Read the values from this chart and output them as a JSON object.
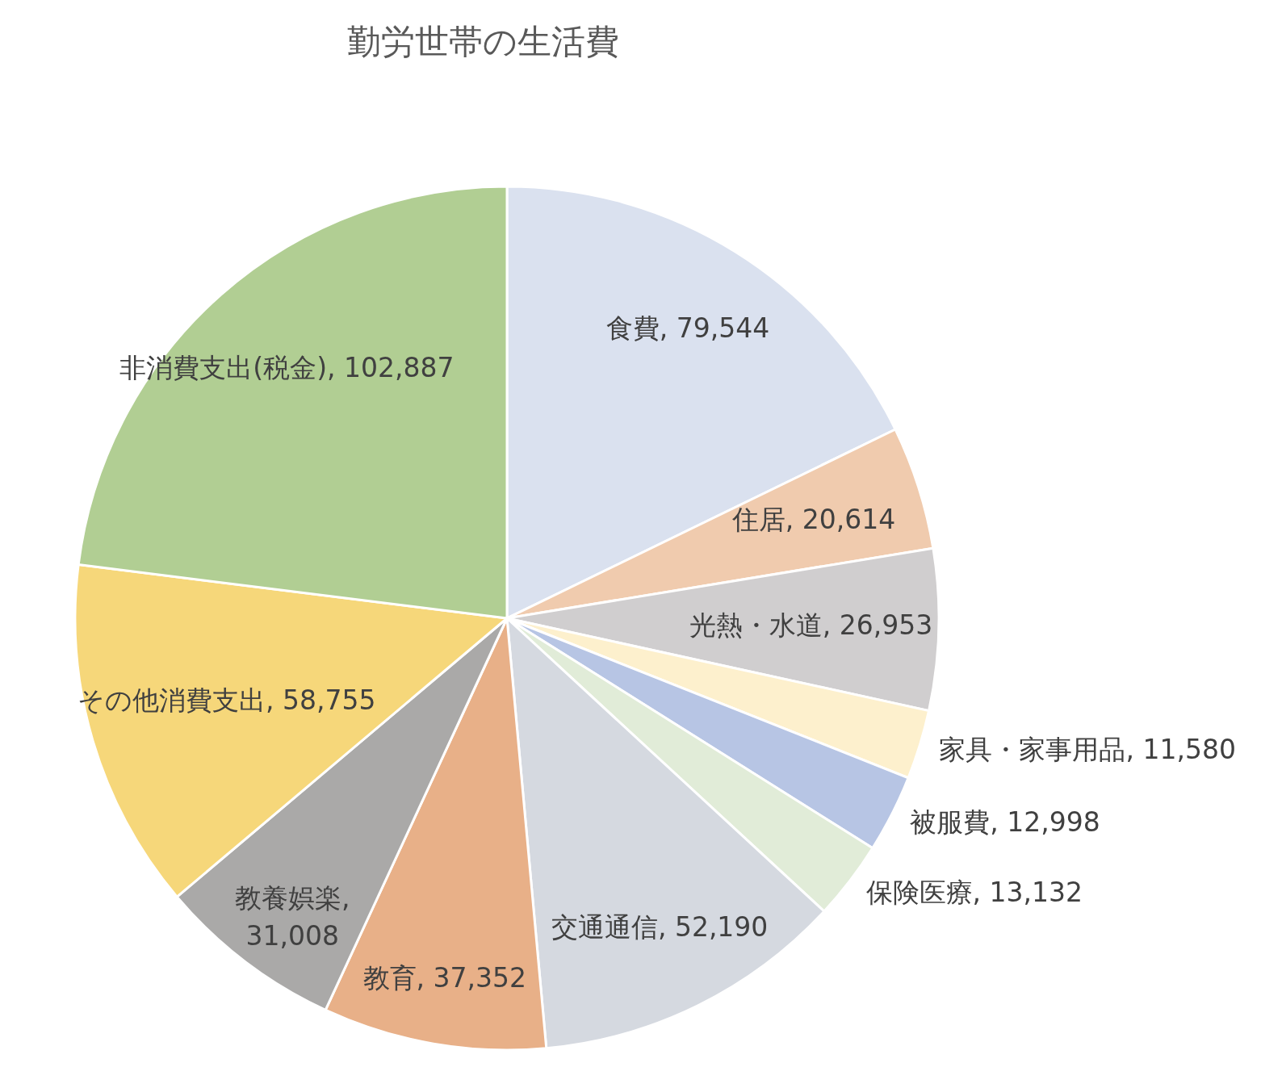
{
  "chart_data": {
    "type": "pie",
    "title": "勤労世帯の生活費",
    "categories": [
      "食費",
      "住居",
      "光熱・水道",
      "家具・家事用品",
      "被服費",
      "保険医療",
      "交通通信",
      "教育",
      "教養娯楽",
      "その他消費支出",
      "非消費支出(税金)"
    ],
    "values": [
      79544,
      20614,
      26953,
      11580,
      12998,
      13132,
      52190,
      37352,
      31008,
      58755,
      102887
    ],
    "value_labels": [
      ", 79,544",
      ", 20,614",
      ", 26,953",
      ", 11,580",
      ", 12,998",
      ", 13,132",
      ", 52,190",
      ", 37,352",
      ", 31,008",
      ", 58,755",
      ", 102,887"
    ],
    "colors": [
      "#dae1ef",
      "#f0cbae",
      "#d0cecf",
      "#fdf0cd",
      "#b7c5e4",
      "#e1ecd8",
      "#d5d9e0",
      "#e8b088",
      "#aaa9a8",
      "#f6d77a",
      "#b1ce93"
    ]
  }
}
